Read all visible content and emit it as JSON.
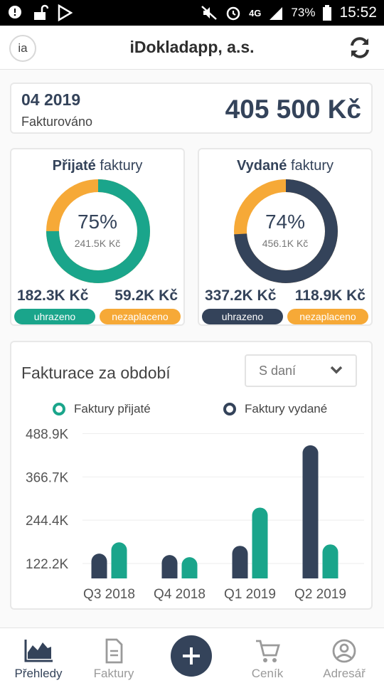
{
  "status_bar": {
    "battery": "73%",
    "time": "15:52",
    "network": "4G"
  },
  "header": {
    "logo": "ia",
    "title": "iDokladapp, a.s."
  },
  "summary": {
    "period": "04 2019",
    "label": "Fakturováno",
    "amount": "405 500 Kč"
  },
  "received": {
    "title_bold": "Přijaté",
    "title_rest": " faktury",
    "percent": "75%",
    "total": "241.5K Kč",
    "paid_amount": "182.3K Kč",
    "unpaid_amount": "59.2K Kč",
    "paid_label": "uhrazeno",
    "unpaid_label": "nezaplaceno",
    "paid_fraction": 0.75,
    "color": "#1aa58b"
  },
  "issued": {
    "title_bold": "Vydané",
    "title_rest": " faktury",
    "percent": "74%",
    "total": "456.1K Kč",
    "paid_amount": "337.2K Kč",
    "unpaid_amount": "118.9K Kč",
    "paid_label": "uhrazeno",
    "unpaid_label": "nezaplaceno",
    "paid_fraction": 0.74,
    "color": "#34435a"
  },
  "chart_section": {
    "title": "Fakturace za období",
    "select_value": "S daní",
    "legend_received": "Faktury přijaté",
    "legend_issued": "Faktury vydané"
  },
  "chart_data": {
    "type": "bar",
    "categories": [
      "Q3 2018",
      "Q4 2018",
      "Q1 2019",
      "Q2 2019"
    ],
    "yticks": [
      "488.9K",
      "366.7K",
      "244.4K",
      "122.2K"
    ],
    "ytick_values": [
      488.9,
      366.7,
      244.4,
      122.2
    ],
    "ylim": [
      80,
      510
    ],
    "series": [
      {
        "name": "Faktury vydané",
        "color": "#34435a",
        "values": [
          150,
          146,
          172,
          456
        ]
      },
      {
        "name": "Faktury přijaté",
        "color": "#1aa58b",
        "values": [
          182,
          140,
          280,
          176
        ]
      }
    ]
  },
  "colors": {
    "accent_green": "#1aa58b",
    "navy": "#34435a",
    "orange": "#f6a937"
  },
  "nav": {
    "overview": "Přehledy",
    "invoices": "Faktury",
    "pricelist": "Ceník",
    "contacts": "Adresář"
  }
}
